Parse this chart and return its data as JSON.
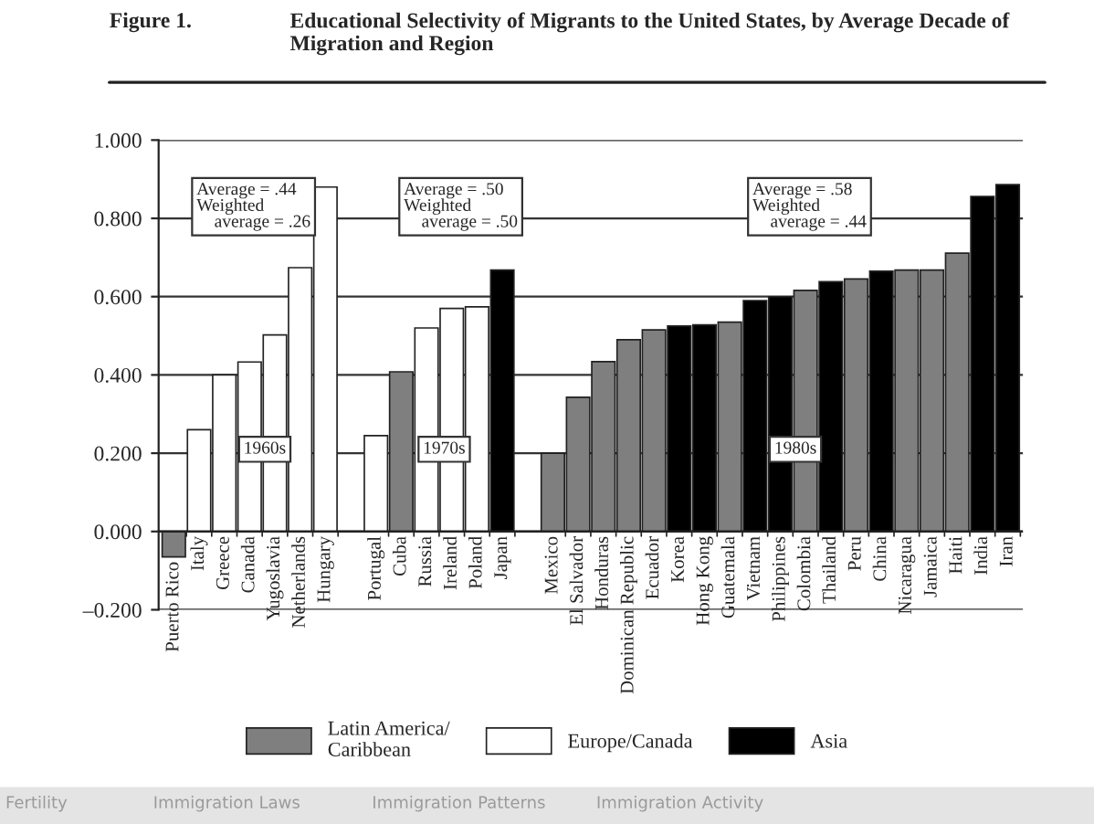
{
  "chart_data": {
    "type": "bar",
    "title": "Educational Selectivity of Migrants to the United States, by Average Decade of Migration and Region",
    "categories": [
      "Puerto Rico",
      "Italy",
      "Greece",
      "Canada",
      "Yugoslavia",
      "Netherlands",
      "Hungary",
      null,
      "Portugal",
      "Cuba",
      "Russia",
      "Ireland",
      "Poland",
      "Japan",
      null,
      "Mexico",
      "El Salvador",
      "Honduras",
      "Dominican Republic",
      "Ecuador",
      "Korea",
      "Hong Kong",
      "Guatemala",
      "Vietnam",
      "Philippines",
      "Colombia",
      "Thailand",
      "Peru",
      "China",
      "Nicaragua",
      "Jamaica",
      "Haiti",
      "India",
      "Iran"
    ],
    "series": [
      {
        "name": "Latin America/\nCaribbean",
        "color": "#7f7f7f",
        "values": [
          -0.065,
          null,
          null,
          null,
          null,
          null,
          null,
          null,
          null,
          0.408,
          null,
          null,
          null,
          null,
          null,
          0.2,
          0.343,
          0.434,
          0.49,
          0.515,
          null,
          null,
          0.535,
          null,
          null,
          0.616,
          null,
          0.645,
          null,
          0.668,
          0.668,
          0.711,
          null,
          null
        ]
      },
      {
        "name": "Europe/Canada",
        "color": "#ffffff",
        "values": [
          null,
          0.26,
          0.4,
          0.433,
          0.502,
          0.674,
          0.88,
          null,
          0.245,
          null,
          0.52,
          0.57,
          0.574,
          null,
          null,
          null,
          null,
          null,
          null,
          null,
          null,
          null,
          null,
          null,
          null,
          null,
          null,
          null,
          null,
          null,
          null,
          null,
          null,
          null
        ]
      },
      {
        "name": "Asia",
        "color": "#000000",
        "values": [
          null,
          null,
          null,
          null,
          null,
          null,
          null,
          null,
          null,
          null,
          null,
          null,
          null,
          0.668,
          null,
          null,
          null,
          null,
          null,
          null,
          0.525,
          0.528,
          null,
          0.59,
          0.6,
          null,
          0.638,
          null,
          0.665,
          null,
          null,
          null,
          0.856,
          0.886
        ]
      }
    ],
    "ylim": [
      -0.2,
      1.0
    ],
    "yticks": [
      {
        "value": -0.2,
        "label": "–0.200"
      },
      {
        "value": 0,
        "label": "0.000"
      },
      {
        "value": 0.2,
        "label": "0.200"
      },
      {
        "value": 0.4,
        "label": "0.400"
      },
      {
        "value": 0.6,
        "label": "0.600"
      },
      {
        "value": 0.8,
        "label": "0.800"
      },
      {
        "value": 1.0,
        "label": "1.000"
      }
    ],
    "grid": "y",
    "legend": "bottom",
    "annotations": [
      "Figure 1.",
      "Average = .44\nWeighted\n    average = .26",
      "Average = .50\nWeighted\n    average = .50",
      "Average = .58\nWeighted\n    average = .44",
      "1960s",
      "1970s",
      "1980s",
      "Fertility",
      "Immigration Laws",
      "Immigration Patterns",
      "Immigration Activity"
    ]
  }
}
